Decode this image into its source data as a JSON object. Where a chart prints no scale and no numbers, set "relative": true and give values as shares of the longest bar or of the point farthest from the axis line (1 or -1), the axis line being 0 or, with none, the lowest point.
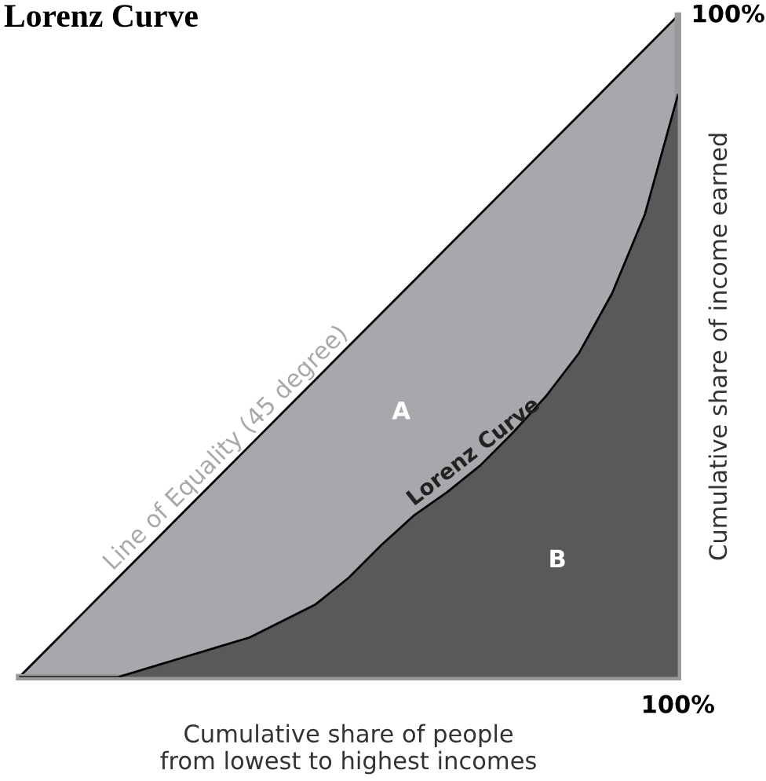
{
  "chart_data": {
    "type": "area",
    "title": "Lorenz Curve",
    "relative": true,
    "xlabel": "Cumulative share of people\nfrom lowest to highest incomes",
    "ylabel": "Cumulative share of income earned",
    "categories": [
      null,
      null,
      null,
      null,
      null,
      null,
      null,
      null,
      null,
      null,
      null,
      null,
      null,
      null,
      null,
      null,
      null,
      null,
      null,
      null,
      null
    ],
    "series": [
      {
        "name": "Line of Equality (45 degree)",
        "color": "#a7a8ab",
        "values": [
          0,
          0.05,
          0.1,
          0.15,
          0.2,
          0.25,
          0.3,
          0.35,
          0.4,
          0.45,
          0.5,
          0.55,
          0.6,
          0.65,
          0.7,
          0.75,
          0.8,
          0.85,
          0.9,
          0.95,
          1
        ]
      },
      {
        "name": "Lorenz Curve",
        "color": "#58595b",
        "values": [
          0,
          0,
          0,
          0,
          0.015,
          0.03,
          0.045,
          0.06,
          0.085,
          0.11,
          0.15,
          0.2,
          0.245,
          0.28,
          0.32,
          0.37,
          0.425,
          0.49,
          0.58,
          0.7,
          0.88
        ]
      }
    ],
    "annotations": [
      "A",
      "B",
      "100%",
      "100%"
    ],
    "legend": false
  }
}
